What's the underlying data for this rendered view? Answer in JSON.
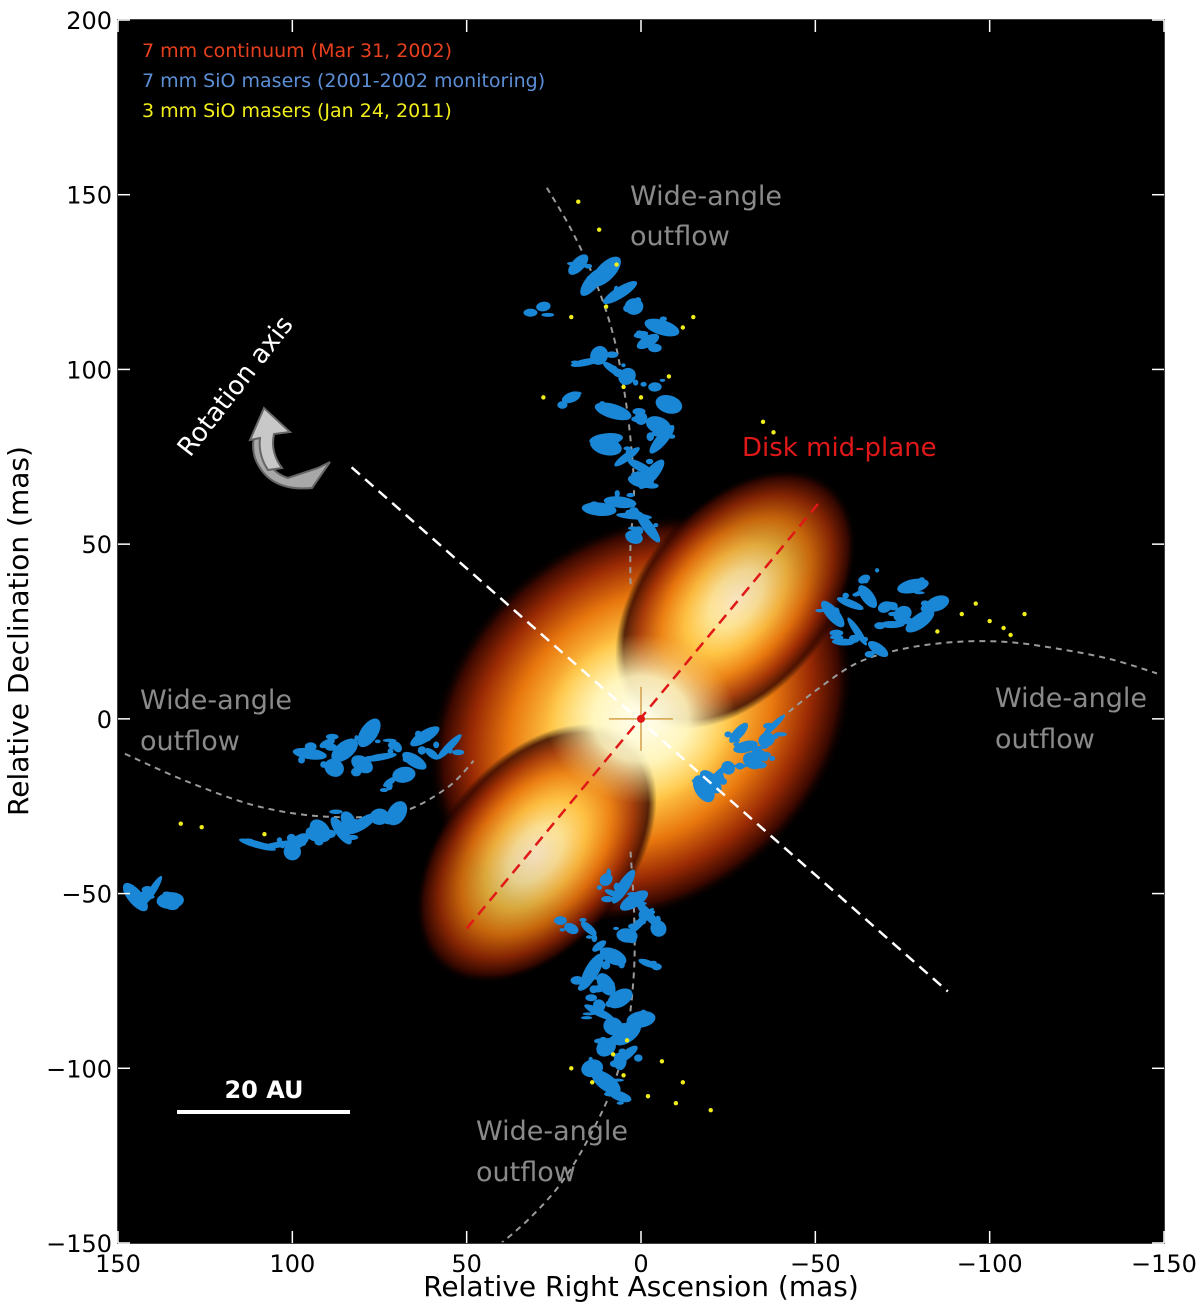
{
  "figure": {
    "legend": [
      {
        "text": "7 mm continuum (Mar 31, 2002)",
        "color": "#e8401e"
      },
      {
        "text": "7 mm SiO masers (2001-2002 monitoring)",
        "color": "#5b8fd6"
      },
      {
        "text": "3 mm SiO masers (Jan 24, 2011)",
        "color": "#f2ee1a"
      }
    ],
    "labels": {
      "outflow_north": [
        "Wide-angle",
        "outflow"
      ],
      "outflow_west": [
        "Wide-angle",
        "outflow"
      ],
      "outflow_east": [
        "Wide-angle",
        "outflow"
      ],
      "outflow_south": [
        "Wide-angle",
        "outflow"
      ],
      "disk_mid_plane": "Disk mid-plane",
      "rotation_axis": "Rotation axis",
      "scale_bar": "20 AU"
    },
    "colors": {
      "background": "#000000",
      "maser_7mm": "#1a86d6",
      "maser_3mm": "#f2ee1a",
      "outflow_curve": "#9a9a9a",
      "disk_line": "#e01818",
      "axis_line": "#ffffff"
    }
  },
  "chart_data": {
    "type": "scatter",
    "xlabel": "Relative Right Ascension (mas)",
    "ylabel": "Relative Declination (mas)",
    "xlim": [
      150,
      -150
    ],
    "ylim": [
      -150,
      200
    ],
    "x_ticks": [
      150,
      100,
      50,
      0,
      -50,
      -100,
      -150
    ],
    "y_ticks": [
      200,
      150,
      100,
      50,
      0,
      -50,
      -100,
      -150
    ],
    "grid": false,
    "legend_position": "top-left",
    "continuum_center": [
      0,
      0
    ],
    "disk_mid_plane": {
      "x": [
        50,
        -52
      ],
      "y": [
        -60,
        63
      ]
    },
    "rotation_axis": {
      "x": [
        83,
        -88
      ],
      "y": [
        72,
        -78
      ]
    },
    "outflow_curves": [
      {
        "x": [
          27,
          20,
          13,
          8,
          5,
          3,
          2,
          3,
          3
        ],
        "y": [
          152,
          140,
          125,
          110,
          95,
          80,
          65,
          50,
          38
        ]
      },
      {
        "x": [
          148,
          130,
          110,
          90,
          70,
          56,
          48
        ],
        "y": [
          -10,
          -18,
          -25,
          -28,
          -27,
          -20,
          -12
        ]
      },
      {
        "x": [
          -40,
          -50,
          -62,
          -75,
          -90,
          -105,
          -120,
          -135,
          -148
        ],
        "y": [
          0,
          8,
          16,
          20,
          22,
          22,
          20,
          17,
          13
        ]
      },
      {
        "x": [
          3,
          2,
          2,
          4,
          8,
          15,
          23,
          32,
          40
        ],
        "y": [
          -38,
          -55,
          -72,
          -90,
          -105,
          -120,
          -133,
          -143,
          -150
        ]
      }
    ],
    "maser_7mm_groups": [
      {
        "x": [
          18,
          14,
          10,
          6,
          2,
          0,
          -2,
          -6,
          12,
          8,
          4,
          -4,
          16,
          8,
          0,
          -5,
          -8,
          10,
          4,
          0,
          -3,
          6,
          2,
          -2,
          20,
          10,
          0,
          -6,
          12,
          2,
          28
        ],
        "y": [
          130,
          125,
          128,
          122,
          118,
          110,
          108,
          112,
          104,
          100,
          98,
          95,
          102,
          88,
          86,
          84,
          90,
          80,
          75,
          72,
          70,
          62,
          58,
          55,
          92,
          78,
          68,
          80,
          60,
          52,
          118
        ]
      },
      {
        "x": [
          -55,
          -60,
          -65,
          -70,
          -75,
          -80,
          -85,
          -62,
          -68,
          -58,
          -78,
          -64,
          -72
        ],
        "y": [
          30,
          33,
          35,
          32,
          30,
          28,
          33,
          25,
          20,
          22,
          38,
          40,
          27
        ]
      },
      {
        "x": [
          -38,
          -36,
          -34,
          -32,
          -30,
          -28,
          -25,
          -22,
          -20,
          -18
        ],
        "y": [
          -2,
          -6,
          -10,
          -12,
          -8,
          -4,
          -14,
          -16,
          -18,
          -20
        ]
      },
      {
        "x": [
          55,
          60,
          65,
          70,
          75,
          80,
          85,
          90,
          95,
          68,
          78,
          88,
          62,
          72
        ],
        "y": [
          -8,
          -10,
          -12,
          -8,
          -11,
          -13,
          -9,
          -7,
          -10,
          -16,
          -4,
          -14,
          -5,
          -18
        ]
      },
      {
        "x": [
          92,
          98,
          104,
          110,
          86,
          80,
          75,
          70,
          100,
          94,
          84
        ],
        "y": [
          -32,
          -35,
          -36,
          -36,
          -32,
          -30,
          -28,
          -27,
          -38,
          -33,
          -29
        ]
      },
      {
        "x": [
          140,
          145,
          135
        ],
        "y": [
          -49,
          -51,
          -52
        ]
      },
      {
        "x": [
          10,
          8,
          5,
          2,
          -2,
          -5,
          15,
          12,
          8,
          4,
          0,
          14,
          10,
          6,
          12,
          8,
          4,
          0,
          10,
          6,
          20,
          16,
          12,
          8,
          4,
          -2,
          14,
          10,
          6
        ],
        "y": [
          -46,
          -50,
          -48,
          -52,
          -56,
          -60,
          -60,
          -65,
          -68,
          -62,
          -58,
          -72,
          -76,
          -80,
          -84,
          -88,
          -90,
          -86,
          -94,
          -98,
          -60,
          -76,
          -82,
          -92,
          -96,
          -70,
          -100,
          -104,
          -108
        ]
      }
    ],
    "maser_3mm_points": {
      "x": [
        18,
        12,
        7,
        20,
        10,
        -12,
        -15,
        5,
        0,
        -8,
        -35,
        -38,
        -85,
        -92,
        -96,
        -100,
        -104,
        -106,
        -110,
        132,
        126,
        108,
        20,
        14,
        -2,
        5,
        -10,
        -20,
        8,
        4,
        -6,
        -12,
        28
      ],
      "y": [
        148,
        140,
        130,
        115,
        118,
        112,
        115,
        95,
        92,
        98,
        85,
        82,
        25,
        30,
        33,
        28,
        26,
        24,
        30,
        -30,
        -31,
        -33,
        -100,
        -104,
        -108,
        -102,
        -110,
        -112,
        -96,
        -92,
        -98,
        -104,
        92
      ]
    }
  }
}
